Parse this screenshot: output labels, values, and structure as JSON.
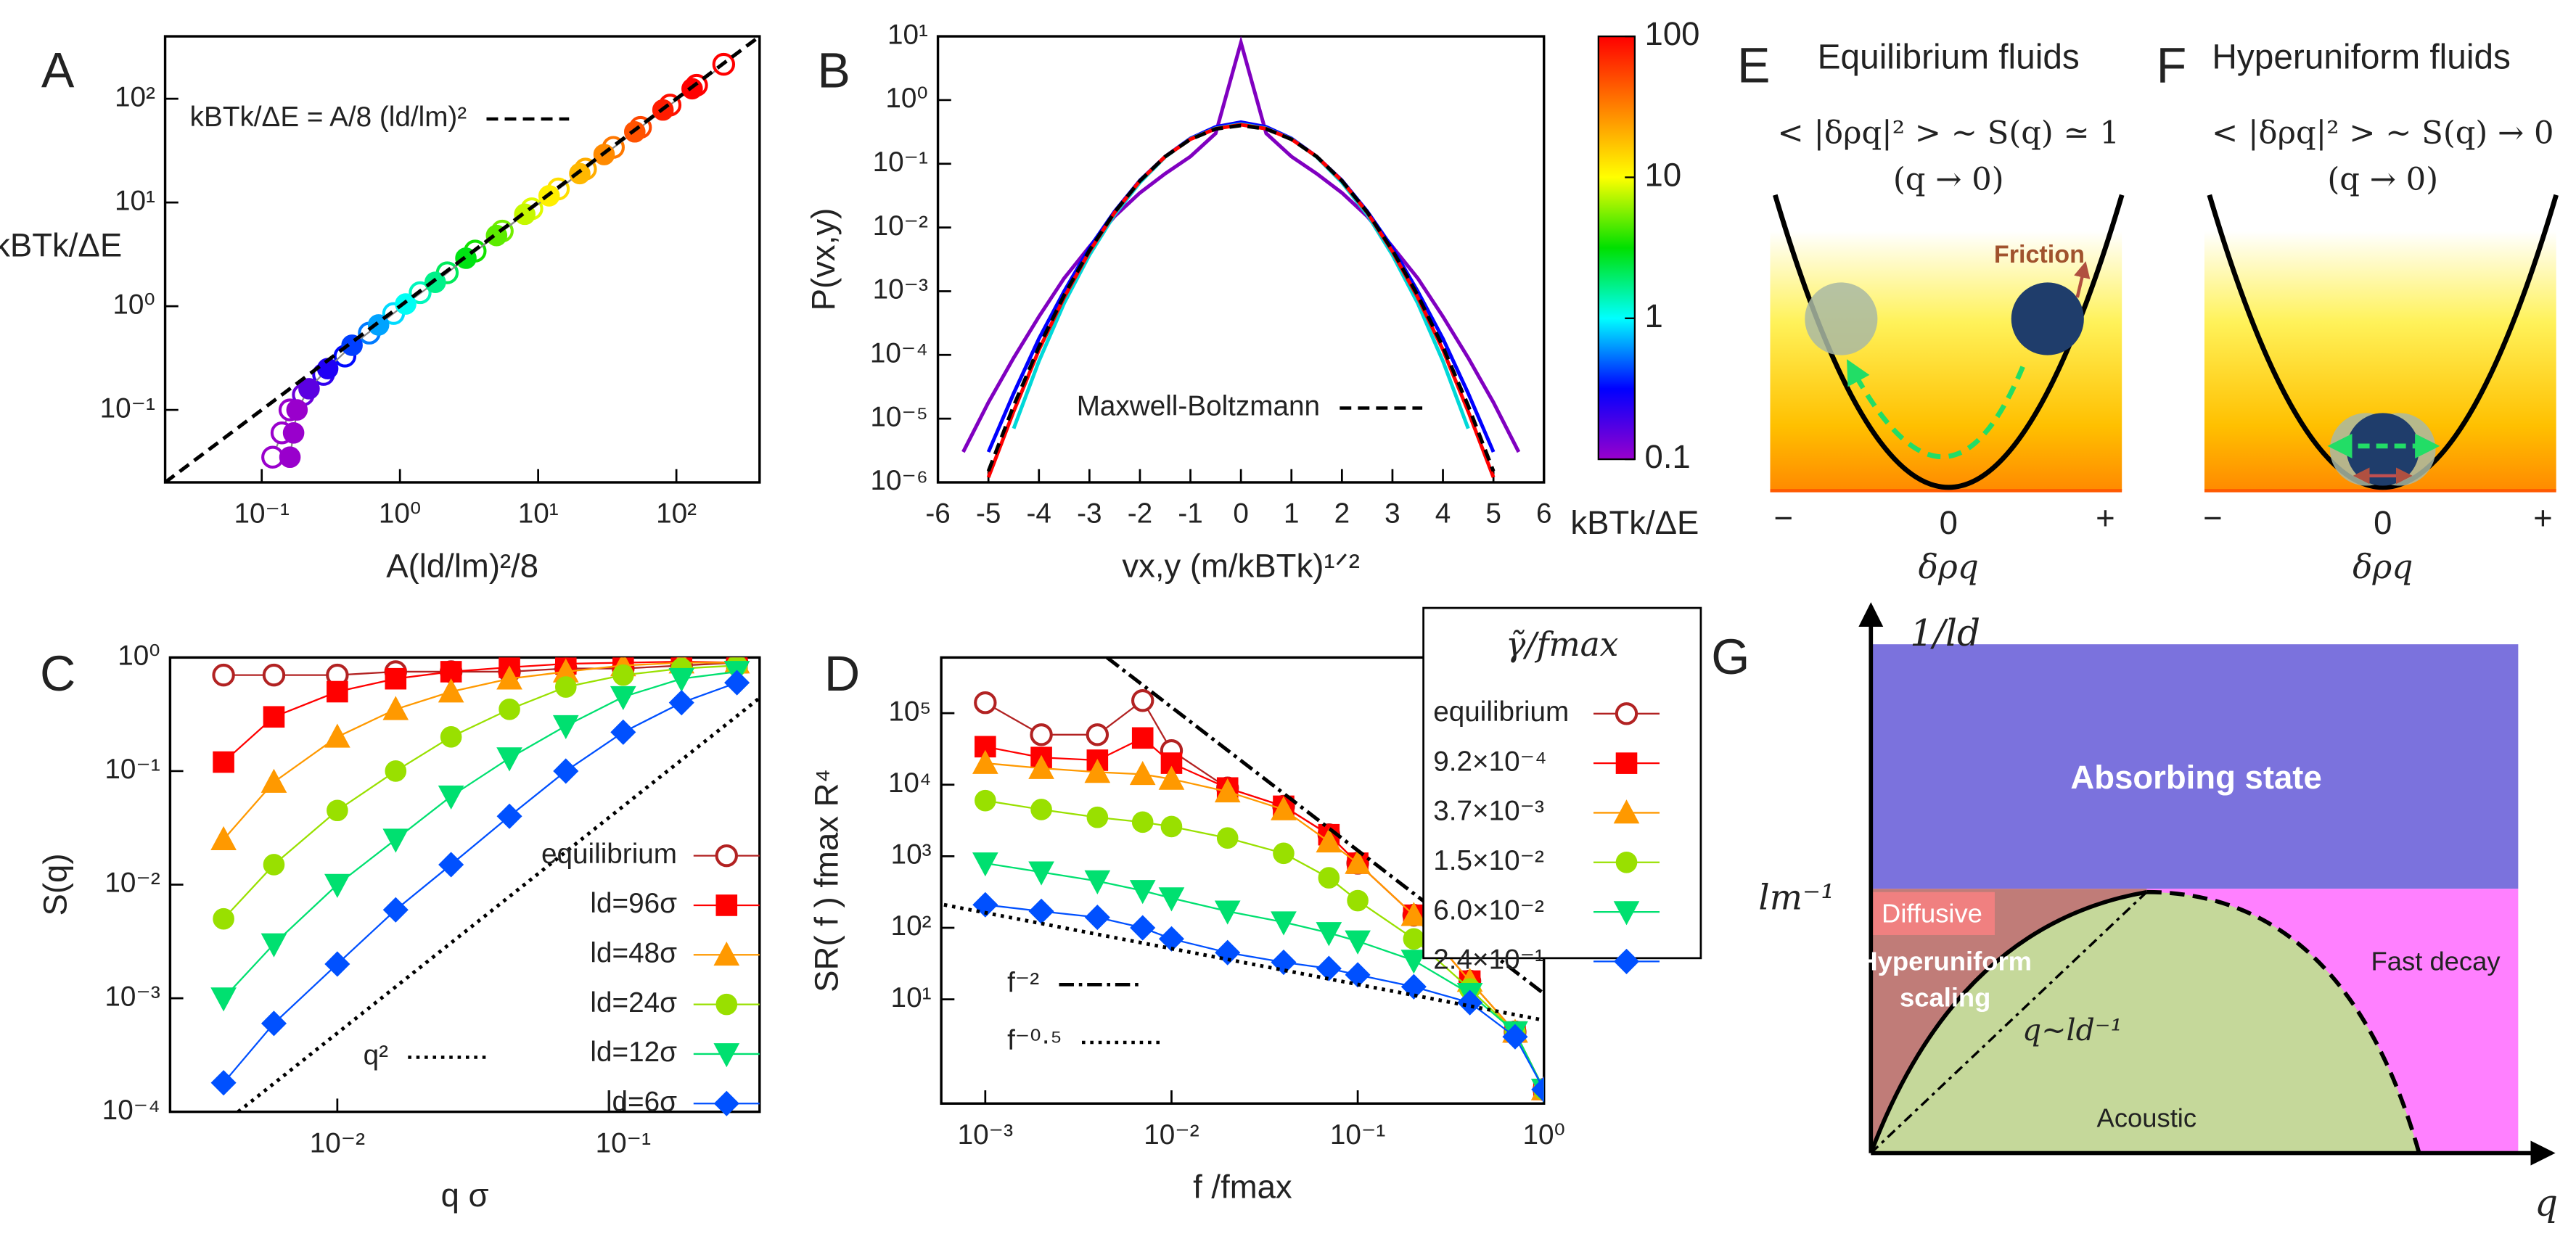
{
  "chart_data": [
    {
      "panel": "A",
      "type": "scatter",
      "xlabel": "A(ld/lm)²/8",
      "ylabel": "kBTk/ΔE",
      "xscale": "log",
      "yscale": "log",
      "xlim": [
        0.02,
        400
      ],
      "ylim": [
        0.02,
        400
      ],
      "xticks": [
        {
          "value": 0.1,
          "label": "10⁻¹"
        },
        {
          "value": 1,
          "label": "10⁰"
        },
        {
          "value": 10,
          "label": "10¹"
        },
        {
          "value": 100,
          "label": "10²"
        }
      ],
      "yticks": [
        {
          "value": 0.1,
          "label": "10⁻¹"
        },
        {
          "value": 1,
          "label": "10⁰"
        },
        {
          "value": 10,
          "label": "10¹"
        },
        {
          "value": 100,
          "label": "10²"
        }
      ],
      "series": [
        {
          "marker": "open-circle",
          "linestyle": "solid",
          "x": [
            0.12,
            0.14,
            0.16,
            0.2,
            0.28,
            0.4,
            0.6,
            0.9,
            1.4,
            2.2,
            3.5,
            5.5,
            9,
            14,
            22,
            35,
            55,
            90,
            140,
            220
          ],
          "values": [
            0.035,
            0.06,
            0.1,
            0.14,
            0.22,
            0.33,
            0.55,
            0.85,
            1.35,
            2.1,
            3.4,
            5.3,
            8.7,
            13.5,
            21,
            34,
            53,
            87,
            135,
            215
          ]
        },
        {
          "marker": "circle",
          "linestyle": "solid",
          "x": [
            0.16,
            0.17,
            0.18,
            0.22,
            0.3,
            0.45,
            0.7,
            1.1,
            1.8,
            3,
            5,
            8,
            12,
            20,
            30,
            50,
            80,
            130
          ],
          "values": [
            0.035,
            0.06,
            0.1,
            0.16,
            0.25,
            0.42,
            0.66,
            1.05,
            1.7,
            2.9,
            4.8,
            7.7,
            11.6,
            19,
            29,
            48,
            78,
            125
          ]
        },
        {
          "name": "kBTk/ΔE = A/8 (ld/lm)²",
          "linestyle": "dashed",
          "color": "#000000",
          "x": [
            0.02,
            400
          ],
          "values": [
            0.02,
            400
          ]
        }
      ]
    },
    {
      "panel": "B",
      "type": "line",
      "xlabel": "vx,y (m/kBTk)¹ᐟ²",
      "ylabel": "P(vx,y)",
      "xscale": "linear",
      "yscale": "log",
      "xlim": [
        -6,
        6
      ],
      "ylim": [
        1e-06,
        10
      ],
      "xticks": [
        -6,
        -5,
        -4,
        -3,
        -2,
        -1,
        0,
        1,
        2,
        3,
        4,
        5,
        6
      ],
      "yticks": [
        {
          "value": 1e-06,
          "label": "10⁻⁶"
        },
        {
          "value": 1e-05,
          "label": "10⁻⁵"
        },
        {
          "value": 0.0001,
          "label": "10⁻⁴"
        },
        {
          "value": 0.001,
          "label": "10⁻³"
        },
        {
          "value": 0.01,
          "label": "10⁻²"
        },
        {
          "value": 0.1,
          "label": "10⁻¹"
        },
        {
          "value": 1,
          "label": "10⁰"
        },
        {
          "value": 10,
          "label": "10¹"
        }
      ],
      "x": [
        -6,
        -5.5,
        -5,
        -4.5,
        -4,
        -3.5,
        -3,
        -2.5,
        -2,
        -1.5,
        -1,
        -0.5,
        0,
        0.5,
        1,
        1.5,
        2,
        2.5,
        3,
        3.5,
        4,
        4.5,
        5,
        5.5,
        6
      ],
      "series": [
        {
          "color": "#8000c0",
          "linestyle": "solid",
          "values": [
            null,
            3e-06,
            1.8e-05,
            9e-05,
            0.0004,
            0.0016,
            0.005,
            0.015,
            0.035,
            0.07,
            0.13,
            0.3,
            8,
            0.3,
            0.13,
            0.07,
            0.035,
            0.015,
            0.005,
            0.0016,
            0.0004,
            9e-05,
            1.8e-05,
            3e-06,
            null
          ]
        },
        {
          "color": "#0000ff",
          "linestyle": "solid",
          "values": [
            null,
            null,
            3e-06,
            2.5e-05,
            0.00018,
            0.001,
            0.0048,
            0.018,
            0.055,
            0.13,
            0.25,
            0.38,
            0.45,
            0.38,
            0.25,
            0.13,
            0.055,
            0.018,
            0.0048,
            0.001,
            0.00018,
            2.5e-05,
            3e-06,
            null,
            null
          ]
        },
        {
          "color": "#00d8d8",
          "linestyle": "solid",
          "values": [
            null,
            null,
            null,
            7e-06,
            8e-05,
            0.00065,
            0.0037,
            0.016,
            0.051,
            0.128,
            0.245,
            0.36,
            0.42,
            0.36,
            0.245,
            0.128,
            0.051,
            0.016,
            0.0037,
            0.00065,
            8e-05,
            7e-06,
            null,
            null,
            null
          ]
        },
        {
          "color": "#ff0000",
          "linestyle": "solid",
          "values": [
            null,
            null,
            1.2e-06,
            1.3e-05,
            0.00012,
            0.0008,
            0.0042,
            0.0172,
            0.054,
            0.13,
            0.243,
            0.355,
            0.41,
            0.355,
            0.243,
            0.13,
            0.054,
            0.0172,
            0.0042,
            0.0008,
            0.00012,
            1.3e-05,
            1.2e-06,
            null,
            null
          ]
        },
        {
          "name": "Maxwell-Boltzmann",
          "color": "#000000",
          "linestyle": "dashed",
          "values": [
            null,
            null,
            1.5e-06,
            1.6e-05,
            0.000134,
            0.00087,
            0.0044,
            0.0175,
            0.054,
            0.13,
            0.242,
            0.352,
            0.399,
            0.352,
            0.242,
            0.13,
            0.054,
            0.0175,
            0.0044,
            0.00087,
            0.000134,
            1.6e-05,
            1.5e-06,
            null,
            null
          ]
        }
      ],
      "colorbar": {
        "label": "kBTk/ΔE",
        "scale": "log",
        "lim": [
          0.1,
          100
        ],
        "ticks": [
          0.1,
          1,
          10,
          100
        ],
        "colors": [
          "#9900cc",
          "#0000ff",
          "#00ffff",
          "#00e000",
          "#ffff00",
          "#ff8000",
          "#ff0000"
        ]
      }
    },
    {
      "panel": "C",
      "type": "scatter",
      "xlabel": "q σ",
      "ylabel": "S(q)",
      "xscale": "log",
      "yscale": "log",
      "xlim": [
        0.0026,
        0.3
      ],
      "ylim": [
        0.0001,
        1
      ],
      "xticks": [
        {
          "value": 0.01,
          "label": "10⁻²"
        },
        {
          "value": 0.1,
          "label": "10⁻¹"
        }
      ],
      "yticks": [
        {
          "value": 0.0001,
          "label": "10⁻⁴"
        },
        {
          "value": 0.001,
          "label": "10⁻³"
        },
        {
          "value": 0.01,
          "label": "10⁻²"
        },
        {
          "value": 0.1,
          "label": "10⁻¹"
        },
        {
          "value": 1,
          "label": "10⁰"
        }
      ],
      "x": [
        0.004,
        0.006,
        0.01,
        0.016,
        0.025,
        0.04,
        0.063,
        0.1,
        0.16,
        0.25
      ],
      "series": [
        {
          "name": "equilibrium",
          "marker": "open-circle",
          "color": "#b22222",
          "linestyle": "solid",
          "values": [
            0.7,
            0.7,
            0.7,
            0.75,
            0.75,
            0.75,
            0.8,
            0.8,
            0.85,
            0.9
          ]
        },
        {
          "name": "ld=96σ",
          "marker": "square",
          "color": "#ff0000",
          "linestyle": "solid",
          "values": [
            0.12,
            0.3,
            0.5,
            0.65,
            0.75,
            0.82,
            0.88,
            0.9,
            0.92,
            0.9
          ]
        },
        {
          "name": "ld=48σ",
          "marker": "triangle",
          "color": "#ff9900",
          "linestyle": "solid",
          "values": [
            0.025,
            0.08,
            0.2,
            0.35,
            0.5,
            0.65,
            0.75,
            0.85,
            0.9,
            0.9
          ]
        },
        {
          "name": "ld=24σ",
          "marker": "circle",
          "color": "#99e000",
          "linestyle": "solid",
          "values": [
            0.005,
            0.015,
            0.045,
            0.1,
            0.2,
            0.35,
            0.55,
            0.7,
            0.8,
            0.85
          ]
        },
        {
          "name": "ld=12σ",
          "marker": "triangle-down",
          "color": "#00e070",
          "linestyle": "solid",
          "values": [
            0.001,
            0.003,
            0.01,
            0.025,
            0.06,
            0.13,
            0.25,
            0.45,
            0.65,
            0.75
          ]
        },
        {
          "name": "ld=6σ",
          "marker": "diamond",
          "color": "#0050ff",
          "linestyle": "solid",
          "values": [
            0.00018,
            0.0006,
            0.002,
            0.006,
            0.015,
            0.04,
            0.1,
            0.22,
            0.4,
            0.6
          ]
        },
        {
          "name": "q²",
          "color": "#000000",
          "linestyle": "dotted",
          "x": [
            0.0045,
            0.3
          ],
          "values": [
            0.0001,
            0.44
          ]
        }
      ]
    },
    {
      "panel": "D",
      "type": "scatter",
      "xlabel": "f /fmax",
      "ylabel": "SR( f ) fmax R⁴",
      "legend_title": "γ̃/fmax",
      "xscale": "log",
      "yscale": "log",
      "xlim": [
        0.00058,
        1
      ],
      "ylim": [
        0.35,
        600000
      ],
      "xticks": [
        {
          "value": 0.001,
          "label": "10⁻³"
        },
        {
          "value": 0.01,
          "label": "10⁻²"
        },
        {
          "value": 0.1,
          "label": "10⁻¹"
        },
        {
          "value": 1,
          "label": "10⁰"
        }
      ],
      "yticks": [
        {
          "value": 10,
          "label": "10¹"
        },
        {
          "value": 100,
          "label": "10²"
        },
        {
          "value": 1000,
          "label": "10³"
        },
        {
          "value": 10000,
          "label": "10⁴"
        },
        {
          "value": 100000,
          "label": "10⁵"
        }
      ],
      "x": [
        0.001,
        0.002,
        0.004,
        0.007,
        0.01,
        0.02,
        0.04,
        0.07,
        0.1,
        0.2,
        0.4,
        0.7,
        1
      ],
      "series": [
        {
          "name": "equilibrium",
          "marker": "open-circle",
          "color": "#b22222",
          "linestyle": "solid",
          "values": [
            140000,
            50000,
            50000,
            150000,
            30000,
            9000,
            5000,
            2000,
            800,
            150,
            18,
            3.5,
            0.55
          ]
        },
        {
          "name": "9.2×10⁻⁴",
          "marker": "square",
          "color": "#ff0000",
          "linestyle": "solid",
          "values": [
            34000,
            24000,
            22000,
            45000,
            20000,
            9000,
            5000,
            2000,
            800,
            150,
            18,
            3.5,
            0.55
          ]
        },
        {
          "name": "3.7×10⁻³",
          "marker": "triangle",
          "color": "#ff9900",
          "linestyle": "solid",
          "values": [
            20000,
            17000,
            15000,
            14000,
            12000,
            8000,
            4500,
            1600,
            800,
            150,
            18,
            3.5,
            0.55
          ]
        },
        {
          "name": "1.5×10⁻²",
          "marker": "circle",
          "color": "#99e000",
          "linestyle": "solid",
          "values": [
            6000,
            4500,
            3500,
            3000,
            2600,
            1800,
            1100,
            500,
            240,
            70,
            14,
            3.5,
            0.55
          ]
        },
        {
          "name": "6.0×10⁻²",
          "marker": "triangle-down",
          "color": "#00e070",
          "linestyle": "solid",
          "values": [
            800,
            600,
            450,
            330,
            260,
            170,
            120,
            85,
            65,
            35,
            12,
            3.5,
            0.55
          ]
        },
        {
          "name": "2.4×10⁻¹",
          "marker": "diamond",
          "color": "#0050ff",
          "linestyle": "solid",
          "values": [
            210,
            170,
            140,
            100,
            70,
            45,
            33,
            27,
            22,
            15,
            9,
            3,
            0.55
          ]
        },
        {
          "name": "f⁻²",
          "color": "#000000",
          "linestyle": "dashdot",
          "x": [
            0.0045,
            1
          ],
          "values": [
            600000,
            12
          ]
        },
        {
          "name": "f⁻⁰·⁵",
          "color": "#000000",
          "linestyle": "dotted",
          "x": [
            0.0006,
            1
          ],
          "values": [
            210,
            5.1
          ]
        }
      ]
    }
  ],
  "diagrams": {
    "E": {
      "label": "E",
      "title": "Equilibrium fluids",
      "equation": "< |δρq|² > ~ S(q) ≃ 1",
      "limit": "(q → 0)",
      "arrow_label": "Friction",
      "axis_ticks": [
        "−",
        "0",
        "+"
      ],
      "axis_label": "δρq"
    },
    "F": {
      "label": "F",
      "title": "Hyperuniform fluids",
      "equation": "< |δρq|² > ~ S(q) → 0",
      "limit": "(q → 0)",
      "axis_ticks": [
        "−",
        "0",
        "+"
      ],
      "axis_label": "δρq"
    },
    "G": {
      "label": "G",
      "y_axis": "1/ld",
      "y_mark": "lm⁻¹",
      "x_axis": "q",
      "line_label": "q~ld⁻¹",
      "regions": {
        "absorbing": "Absorbing state",
        "diffusive": "Diffusive",
        "hyperuniform": [
          "Hyperuniform",
          "scaling"
        ],
        "fast": "Fast decay",
        "acoustic": "Acoustic"
      }
    }
  }
}
